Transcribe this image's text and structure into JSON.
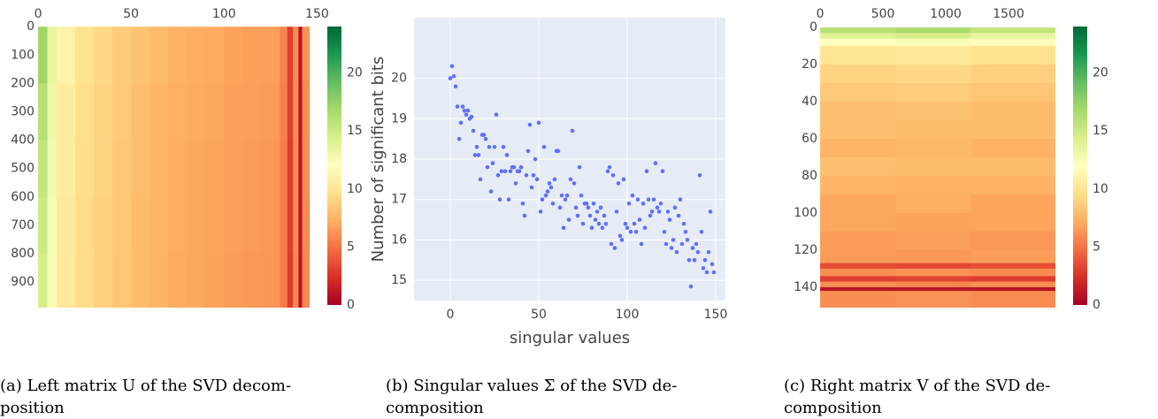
{
  "chart_data": [
    {
      "type": "heatmap",
      "xbins": [
        0,
        5,
        10,
        20,
        30,
        40,
        50,
        60,
        70,
        80,
        90,
        100,
        110,
        120,
        130,
        134,
        137,
        140,
        142,
        146
      ],
      "ybins": [
        0,
        200,
        400,
        600,
        800,
        990
      ],
      "z": [
        [
          17,
          13.5,
          11,
          9.8,
          9.2,
          8.6,
          8.2,
          7.8,
          7.4,
          7.2,
          7.1,
          6.8,
          6.7,
          6.6,
          5.6,
          3,
          6,
          1,
          6.2
        ],
        [
          16,
          13,
          10.6,
          9.6,
          9,
          8.5,
          8,
          7.6,
          7.3,
          7.1,
          7,
          6.7,
          6.6,
          6.5,
          5.5,
          3,
          6,
          1,
          6
        ],
        [
          15.5,
          12.8,
          10.5,
          9.5,
          9,
          8.4,
          8,
          7.6,
          7.2,
          7,
          6.9,
          6.6,
          6.5,
          6.4,
          5.4,
          2.9,
          5.9,
          1,
          6
        ],
        [
          15,
          12.5,
          10.4,
          9.4,
          8.9,
          8.4,
          7.9,
          7.5,
          7.2,
          7,
          6.9,
          6.6,
          6.5,
          6.4,
          5.4,
          2.9,
          5.9,
          1,
          5.9
        ],
        [
          14.5,
          12.4,
          10.3,
          9.4,
          8.8,
          8.3,
          7.9,
          7.5,
          7.1,
          7,
          6.8,
          6.5,
          6.4,
          6.3,
          5.3,
          2.8,
          5.8,
          1,
          5.8
        ]
      ],
      "xlim": [
        -0.5,
        146
      ],
      "xticks": [
        0,
        50,
        100,
        150
      ],
      "ylim": [
        -0.5,
        990
      ],
      "yticks": [
        0,
        100,
        200,
        300,
        400,
        500,
        600,
        700,
        800,
        900
      ],
      "y_reversed": true,
      "colorscale": [
        "#a50026",
        "#d73027",
        "#f46d43",
        "#fdae61",
        "#fee08b",
        "#ffffbf",
        "#d9ef8b",
        "#a6d96a",
        "#66bd63",
        "#1a9850",
        "#006837"
      ],
      "zlim": [
        0,
        24
      ],
      "zticks": [
        0,
        5,
        10,
        15,
        20
      ],
      "caption": [
        "(a) Left matrix U of the SVD decom-",
        "position"
      ]
    },
    {
      "type": "scatter",
      "color": "#636efa",
      "grid": true,
      "xlabel": "singular values",
      "ylabel": "Number of significant bits",
      "x": [
        0,
        1,
        2,
        3,
        4,
        5,
        6,
        7,
        8,
        9,
        10,
        11,
        12,
        13,
        14,
        15,
        16,
        17,
        18,
        19,
        20,
        21,
        22,
        23,
        24,
        25,
        26,
        27,
        28,
        29,
        30,
        31,
        32,
        33,
        34,
        35,
        36,
        37,
        38,
        39,
        40,
        41,
        42,
        43,
        44,
        45,
        46,
        47,
        48,
        49,
        50,
        51,
        52,
        53,
        54,
        55,
        56,
        57,
        58,
        59,
        60,
        61,
        62,
        63,
        64,
        65,
        66,
        67,
        68,
        69,
        70,
        71,
        72,
        73,
        74,
        75,
        76,
        77,
        78,
        79,
        80,
        81,
        82,
        83,
        84,
        85,
        86,
        87,
        88,
        89,
        90,
        91,
        92,
        93,
        94,
        95,
        96,
        97,
        98,
        99,
        100,
        101,
        102,
        103,
        104,
        105,
        106,
        107,
        108,
        109,
        110,
        111,
        112,
        113,
        114,
        115,
        116,
        117,
        118,
        119,
        120,
        121,
        122,
        123,
        124,
        125,
        126,
        127,
        128,
        129,
        130,
        131,
        132,
        133,
        134,
        135,
        136,
        137,
        138,
        139,
        140,
        141,
        142,
        143,
        144,
        145,
        146,
        147,
        148,
        149
      ],
      "y": [
        20.0,
        20.3,
        20.05,
        19.8,
        19.3,
        18.5,
        18.9,
        19.3,
        19.2,
        19.1,
        19.2,
        19.0,
        19.05,
        18.7,
        18.1,
        18.3,
        18.1,
        17.5,
        18.6,
        18.6,
        18.5,
        17.8,
        18.3,
        17.2,
        17.9,
        18.3,
        19.1,
        17.6,
        17.0,
        17.7,
        18.3,
        17.7,
        18.1,
        17.0,
        17.7,
        17.8,
        17.8,
        17.4,
        17.7,
        17.7,
        17.8,
        16.9,
        16.6,
        17.6,
        18.2,
        18.85,
        17.3,
        17.6,
        18.0,
        17.5,
        18.9,
        16.7,
        17.0,
        18.3,
        17.1,
        17.2,
        17.4,
        17.3,
        16.9,
        17.5,
        18.2,
        18.2,
        16.8,
        17.1,
        16.3,
        17.0,
        17.1,
        16.5,
        17.5,
        18.7,
        17.4,
        16.8,
        16.6,
        17.8,
        17.1,
        16.4,
        16.9,
        16.9,
        16.8,
        16.6,
        16.3,
        16.9,
        16.5,
        16.7,
        16.4,
        16.8,
        16.3,
        16.6,
        16.4,
        17.7,
        17.8,
        15.9,
        17.6,
        15.8,
        16.7,
        17.4,
        16.1,
        16.0,
        17.5,
        16.4,
        16.3,
        16.9,
        16.2,
        17.1,
        16.4,
        16.2,
        17.0,
        16.5,
        15.9,
        16.9,
        16.3,
        17.7,
        17.0,
        16.6,
        16.7,
        17.0,
        17.9,
        16.8,
        16.7,
        16.9,
        17.7,
        16.2,
        15.9,
        16.7,
        16.5,
        15.8,
        16.0,
        16.8,
        15.7,
        16.6,
        17.0,
        15.9,
        16.4,
        16.2,
        16.0,
        15.5,
        14.85,
        15.8,
        15.5,
        15.9,
        15.7,
        17.6,
        16.2,
        15.3,
        15.5,
        15.2,
        15.7,
        16.7,
        15.4,
        15.2
      ],
      "xlim": [
        -20.5,
        155.5
      ],
      "xticks": [
        0,
        50,
        100,
        150
      ],
      "ylim": [
        14.5,
        21.5
      ],
      "yticks": [
        15,
        16,
        17,
        18,
        19,
        20
      ],
      "caption": [
        "(b) Singular values Σ of the SVD de-",
        "composition"
      ]
    },
    {
      "type": "heatmap",
      "xbins": [
        0,
        600,
        1200,
        1873
      ],
      "ybins": [
        0,
        3,
        6,
        10,
        20,
        30,
        40,
        50,
        60,
        70,
        80,
        90,
        100,
        110,
        120,
        127,
        130,
        134,
        137,
        140,
        142,
        151
      ],
      "z": [
        [
          16,
          16.5,
          15.5
        ],
        [
          14,
          14.5,
          13.5
        ],
        [
          12,
          12.4,
          11.8
        ],
        [
          10,
          10.3,
          9.8
        ],
        [
          9,
          9.2,
          8.8
        ],
        [
          8.5,
          8.7,
          8.3
        ],
        [
          8,
          8.2,
          7.9
        ],
        [
          8,
          7.8,
          7.9
        ],
        [
          7.5,
          7.7,
          7.4
        ],
        [
          8,
          7.8,
          7.9
        ],
        [
          7.5,
          7.3,
          7.4
        ],
        [
          7,
          7.2,
          6.9
        ],
        [
          7,
          6.8,
          6.9
        ],
        [
          6.5,
          6.7,
          6.4
        ],
        [
          6.5,
          6.4,
          6.6
        ],
        [
          3.5,
          3.3,
          3.6
        ],
        [
          6,
          6.2,
          5.9
        ],
        [
          3,
          3.2,
          2.9
        ],
        [
          6,
          5.8,
          6.1
        ],
        [
          1,
          1,
          1
        ],
        [
          6,
          6.2,
          5.9
        ]
      ],
      "xlim": [
        -0.5,
        1873
      ],
      "xticks": [
        0,
        500,
        1000,
        1500
      ],
      "ylim": [
        -0.5,
        151
      ],
      "yticks": [
        0,
        20,
        40,
        60,
        80,
        100,
        120,
        140
      ],
      "y_reversed": true,
      "colorscale": [
        "#a50026",
        "#d73027",
        "#f46d43",
        "#fdae61",
        "#fee08b",
        "#ffffbf",
        "#d9ef8b",
        "#a6d96a",
        "#66bd63",
        "#1a9850",
        "#006837"
      ],
      "zlim": [
        0,
        24
      ],
      "zticks": [
        0,
        5,
        10,
        15,
        20
      ],
      "caption": [
        "(c) Right matrix V of the SVD de-",
        "composition"
      ]
    }
  ]
}
